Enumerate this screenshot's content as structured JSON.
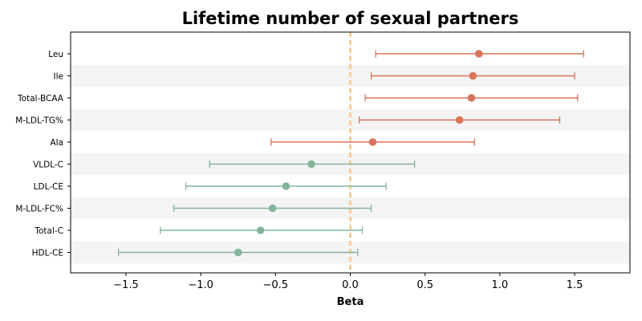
{
  "chart_data": {
    "type": "forest",
    "title": "Lifetime number of sexual partners",
    "xlabel": "Beta",
    "ylabel": "",
    "xlim": [
      -1.87,
      1.87
    ],
    "xticks": [
      -1.5,
      -1.0,
      -0.5,
      0.0,
      0.5,
      1.0,
      1.5
    ],
    "xtick_labels": [
      "−1.5",
      "−1.0",
      "−0.5",
      "0.0",
      "0.5",
      "1.0",
      "1.5"
    ],
    "reference_line": 0,
    "reference_line_style": "dashed",
    "grid": false,
    "row_shading": "alternating",
    "colors": {
      "positive": "#d9745a",
      "negative": "#84b59a",
      "reference": "#f5c77e",
      "band": "#f4f4f4"
    },
    "rows": [
      {
        "label": "Leu",
        "beta": 0.86,
        "lower": 0.17,
        "upper": 1.56,
        "group": "positive"
      },
      {
        "label": "Ile",
        "beta": 0.82,
        "lower": 0.14,
        "upper": 1.5,
        "group": "positive"
      },
      {
        "label": "Total-BCAA",
        "beta": 0.81,
        "lower": 0.1,
        "upper": 1.52,
        "group": "positive"
      },
      {
        "label": "M-LDL-TG%",
        "beta": 0.73,
        "lower": 0.06,
        "upper": 1.4,
        "group": "positive"
      },
      {
        "label": "Ala",
        "beta": 0.15,
        "lower": -0.53,
        "upper": 0.83,
        "group": "positive"
      },
      {
        "label": "VLDL-C",
        "beta": -0.26,
        "lower": -0.94,
        "upper": 0.43,
        "group": "negative"
      },
      {
        "label": "LDL-CE",
        "beta": -0.43,
        "lower": -1.1,
        "upper": 0.24,
        "group": "negative"
      },
      {
        "label": "M-LDL-FC%",
        "beta": -0.52,
        "lower": -1.18,
        "upper": 0.14,
        "group": "negative"
      },
      {
        "label": "Total-C",
        "beta": -0.6,
        "lower": -1.27,
        "upper": 0.08,
        "group": "negative"
      },
      {
        "label": "HDL-CE",
        "beta": -0.75,
        "lower": -1.55,
        "upper": 0.05,
        "group": "negative"
      }
    ]
  }
}
